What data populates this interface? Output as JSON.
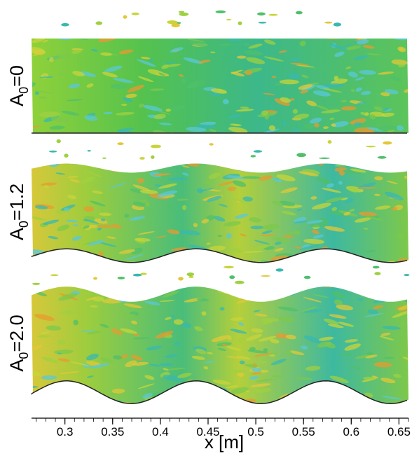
{
  "chart_data": {
    "type": "field-panels",
    "panels": [
      {
        "base": "A",
        "sub": "0",
        "rest": "=0",
        "wave": 0
      },
      {
        "base": "A",
        "sub": "0",
        "rest": "=1.2",
        "wave": 1.2
      },
      {
        "base": "A",
        "sub": "0",
        "rest": "=2.0",
        "wave": 2.0
      }
    ],
    "xlabel": "x [m]",
    "xlim": [
      0.265,
      0.66
    ],
    "xticks": [
      0.3,
      0.35,
      0.4,
      0.45,
      0.5,
      0.55,
      0.6,
      0.65
    ]
  }
}
